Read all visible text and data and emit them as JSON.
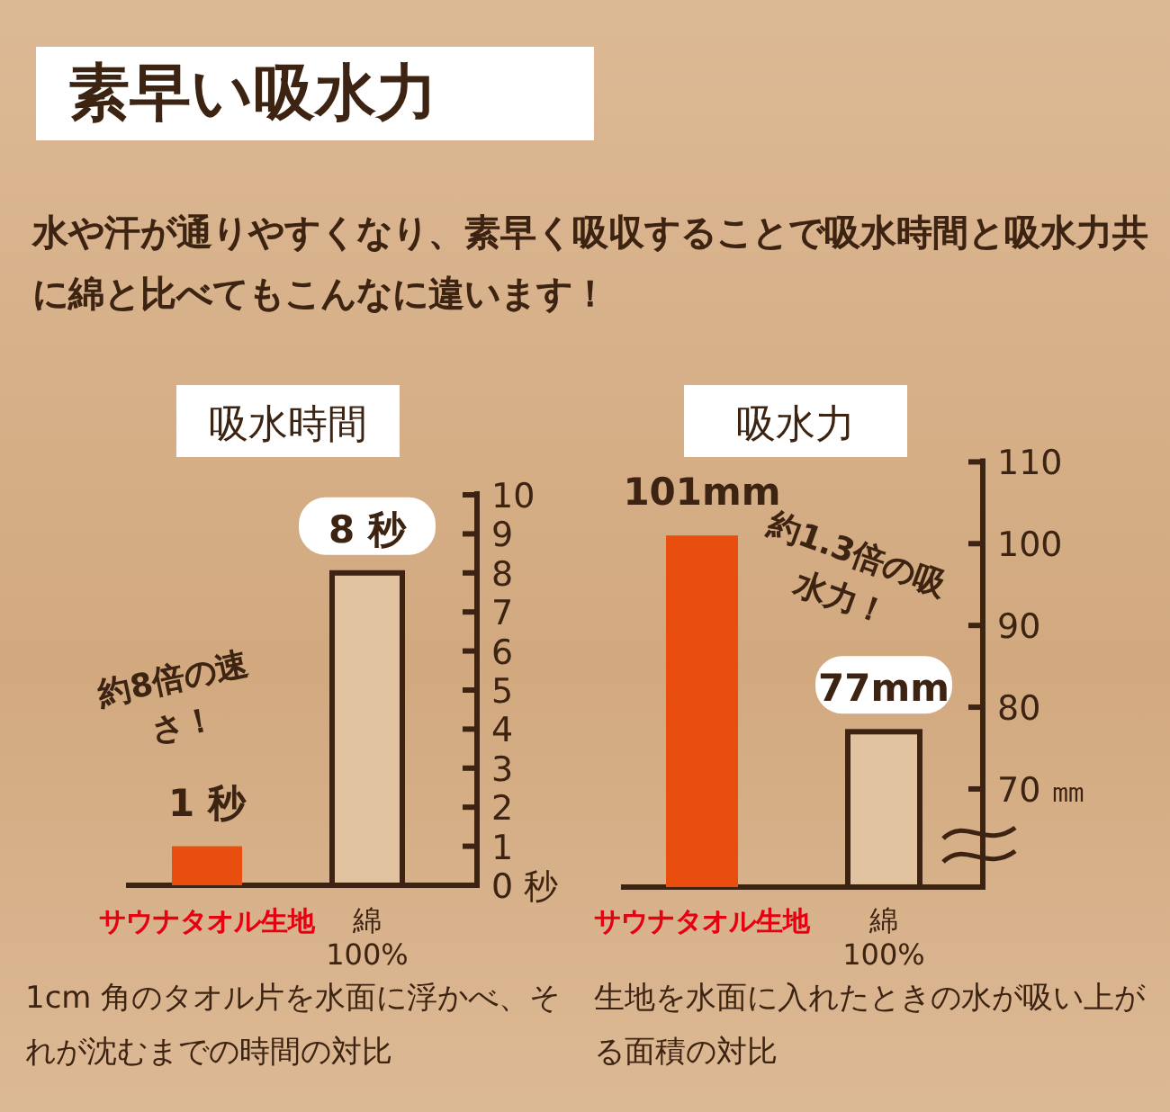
{
  "chart_data": [
    {
      "type": "other",
      "title": "素早い吸水力",
      "subtitle": "水や汗が通りやすくなり、素早く吸収することで吸水時間と吸水力共に綿と比べてもこんなに違います！"
    },
    {
      "type": "bar",
      "title": "吸水時間",
      "categories": [
        "サウナタオル生地",
        "綿\n100%"
      ],
      "values": [
        1,
        8
      ],
      "colors": [
        "#e94e0f",
        "#e2c3a0"
      ],
      "value_labels": [
        "1 秒",
        "8 秒"
      ],
      "ylim": [
        0,
        10
      ],
      "yticks": [
        {
          "value": 0,
          "label": "0 秒"
        },
        1,
        2,
        3,
        4,
        5,
        6,
        7,
        8,
        9,
        10
      ],
      "tick_labels": "y",
      "annotations": [
        "約8倍の速さ！",
        "1cm 角のタオル片を水面に浮かべ、それが沈むまでの時間の対比"
      ]
    },
    {
      "type": "bar",
      "title": "吸水力",
      "categories": [
        "サウナタオル生地",
        "綿\n100%"
      ],
      "values": [
        101,
        77
      ],
      "colors": [
        "#e94e0f",
        "#e2c3a0"
      ],
      "value_labels": [
        "101mm",
        "77mm"
      ],
      "ylim": [
        58,
        110
      ],
      "yticks": [
        {
          "value": 70,
          "label": "70 ㎜"
        },
        80,
        90,
        100,
        110
      ],
      "tick_labels": "y",
      "annotations": [
        "約1.3倍の吸水力！",
        "生地を水面に入れたときの水が吸い上がる面積の対比"
      ]
    }
  ]
}
